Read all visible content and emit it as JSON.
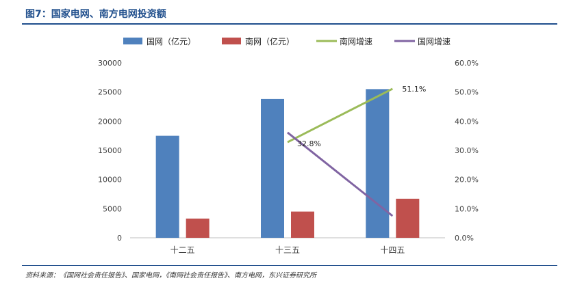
{
  "figure": {
    "title": "图7：国家电网、南方电网投资额",
    "source": "资料来源：《国网社会责任报告》、国家电网，《南网社会责任报告》、南方电网，东兴证券研究所"
  },
  "colors": {
    "title": "#1f4e8c",
    "sgcc_bar": "#4f81bd",
    "csg_bar": "#c0504d",
    "csg_growth": "#9bbb59",
    "sgcc_growth": "#8064a2",
    "axis": "#404040"
  },
  "chart_data": {
    "type": "bar",
    "categories": [
      "十二五",
      "十三五",
      "十四五"
    ],
    "ylim": [
      0,
      30000
    ],
    "y_ticks": [
      "0",
      "5000",
      "10000",
      "15000",
      "20000",
      "25000",
      "30000"
    ],
    "y2lim": [
      0,
      0.6
    ],
    "y2_ticks": [
      "0.0%",
      "10.0%",
      "20.0%",
      "30.0%",
      "40.0%",
      "50.0%",
      "60.0%"
    ],
    "legend_position": "top",
    "grid": false,
    "series": [
      {
        "name": "国网（亿元）",
        "type": "bar",
        "axis": "left",
        "values": [
          17500,
          23800,
          25500
        ]
      },
      {
        "name": "南网（亿元）",
        "type": "bar",
        "axis": "left",
        "values": [
          3300,
          4500,
          6700
        ]
      },
      {
        "name": "南网增速",
        "type": "line",
        "axis": "right",
        "points": [
          {
            "category": "十三五",
            "value": 0.328
          },
          {
            "category": "十四五",
            "value": 0.511
          }
        ]
      },
      {
        "name": "国网增速",
        "type": "line",
        "axis": "right",
        "points": [
          {
            "category": "十三五",
            "value": 0.361
          },
          {
            "category": "十四五",
            "value": 0.075
          }
        ]
      }
    ],
    "data_labels": [
      {
        "series": "南网增速",
        "category": "十三五",
        "text": "32.8%"
      },
      {
        "series": "南网增速",
        "category": "十四五",
        "text": "51.1%"
      }
    ]
  }
}
